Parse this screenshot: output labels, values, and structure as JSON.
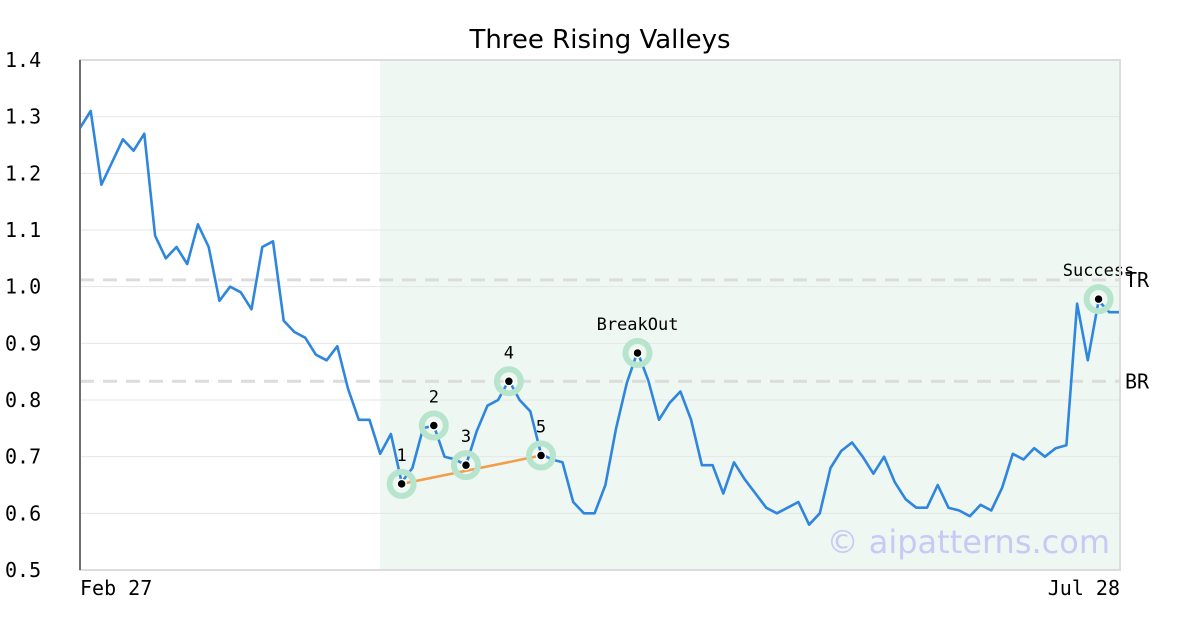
{
  "chart_data": {
    "type": "line",
    "title": "Three Rising Valleys",
    "xlabel": "",
    "ylabel": "",
    "ylim": [
      0.5,
      1.4
    ],
    "y_ticks": [
      "0.5",
      "0.6",
      "0.7",
      "0.8",
      "0.9",
      "1.0",
      "1.1",
      "1.2",
      "1.3",
      "1.4"
    ],
    "x_tick_labels": [
      "Feb 27",
      "Jul 28"
    ],
    "grid": "horizontal",
    "series": [
      {
        "color": "#2f86de",
        "values": [
          1.28,
          1.31,
          1.18,
          1.22,
          1.26,
          1.24,
          1.27,
          1.09,
          1.05,
          1.07,
          1.04,
          1.11,
          1.07,
          0.975,
          1.0,
          0.99,
          0.96,
          1.07,
          1.08,
          0.94,
          0.92,
          0.91,
          0.88,
          0.87,
          0.895,
          0.82,
          0.765,
          0.765,
          0.705,
          0.74,
          0.655,
          0.68,
          0.75,
          0.755,
          0.7,
          0.695,
          0.685,
          0.745,
          0.79,
          0.8,
          0.835,
          0.8,
          0.78,
          0.705,
          0.695,
          0.69,
          0.62,
          0.6,
          0.6,
          0.65,
          0.75,
          0.83,
          0.885,
          0.835,
          0.765,
          0.795,
          0.815,
          0.765,
          0.685,
          0.685,
          0.635,
          0.69,
          0.66,
          0.635,
          0.61,
          0.6,
          0.61,
          0.62,
          0.58,
          0.6,
          0.68,
          0.71,
          0.725,
          0.7,
          0.67,
          0.7,
          0.655,
          0.625,
          0.61,
          0.61,
          0.65,
          0.61,
          0.605,
          0.595,
          0.615,
          0.605,
          0.645,
          0.705,
          0.695,
          0.715,
          0.7,
          0.715,
          0.72,
          0.97,
          0.87,
          0.975,
          0.955,
          0.955
        ]
      }
    ],
    "pattern_line": {
      "color": "#f39c4a",
      "from": [
        30,
        0.652
      ],
      "to": [
        43,
        0.702
      ]
    },
    "highlight_region": {
      "from": 28,
      "to": 97,
      "color": "#eef7f2"
    },
    "levels": [
      {
        "label": "TR",
        "value": 1.012
      },
      {
        "label": "BR",
        "value": 0.833
      }
    ],
    "markers": [
      {
        "label": "1",
        "x": 30,
        "y": 0.652
      },
      {
        "label": "2",
        "x": 33,
        "y": 0.755
      },
      {
        "label": "3",
        "x": 36,
        "y": 0.685
      },
      {
        "label": "4",
        "x": 40,
        "y": 0.833
      },
      {
        "label": "5",
        "x": 43,
        "y": 0.702
      },
      {
        "label": "BreakOut",
        "x": 52,
        "y": 0.883
      },
      {
        "label": "Success",
        "x": 95,
        "y": 0.978
      }
    ],
    "watermark": "© aipatterns.com",
    "watermark_color": "#c9c9f5",
    "marker_halo_color": "#b7e4cc"
  }
}
